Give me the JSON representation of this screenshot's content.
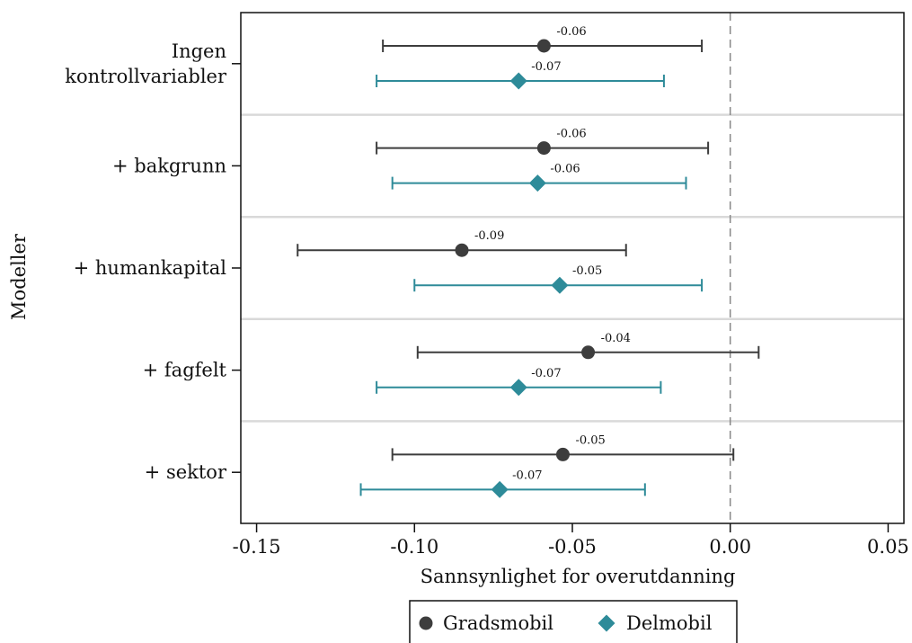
{
  "chart_data": {
    "type": "dot-errorbar",
    "xlabel": "Sannsynlighet for overutdanning",
    "ylabel": "Modeller",
    "xlim": [
      -0.155,
      0.055
    ],
    "xticks": [
      -0.15,
      -0.1,
      -0.05,
      0.0,
      0.05
    ],
    "xtick_labels": [
      "-0.15",
      "-0.10",
      "-0.05",
      "0.00",
      "0.05"
    ],
    "reference_line": {
      "x": 0.0,
      "style": "dashed"
    },
    "categories": [
      [
        "Ingen",
        "kontrollvariabler"
      ],
      [
        "+ bakgrunn"
      ],
      [
        "+ humankapital"
      ],
      [
        "+ fagfelt"
      ],
      [
        "+ sektor"
      ]
    ],
    "series": [
      {
        "name": "Gradsmobil",
        "marker": "circle",
        "color": "#3d3d3d",
        "estimates": [
          -0.059,
          -0.059,
          -0.085,
          -0.045,
          -0.053
        ],
        "lower": [
          -0.11,
          -0.112,
          -0.137,
          -0.099,
          -0.107
        ],
        "upper": [
          -0.009,
          -0.007,
          -0.033,
          0.009,
          0.001
        ],
        "labels": [
          "-0.06",
          "-0.06",
          "-0.09",
          "-0.04",
          "-0.05"
        ]
      },
      {
        "name": "Delmobil",
        "marker": "diamond",
        "color": "#2e8b99",
        "estimates": [
          -0.067,
          -0.061,
          -0.054,
          -0.067,
          -0.073
        ],
        "lower": [
          -0.112,
          -0.107,
          -0.1,
          -0.112,
          -0.117
        ],
        "upper": [
          -0.021,
          -0.014,
          -0.009,
          -0.022,
          -0.027
        ],
        "labels": [
          "-0.07",
          "-0.06",
          "-0.05",
          "-0.07",
          "-0.07"
        ]
      }
    ],
    "legend_position": "bottom",
    "grid": false
  }
}
